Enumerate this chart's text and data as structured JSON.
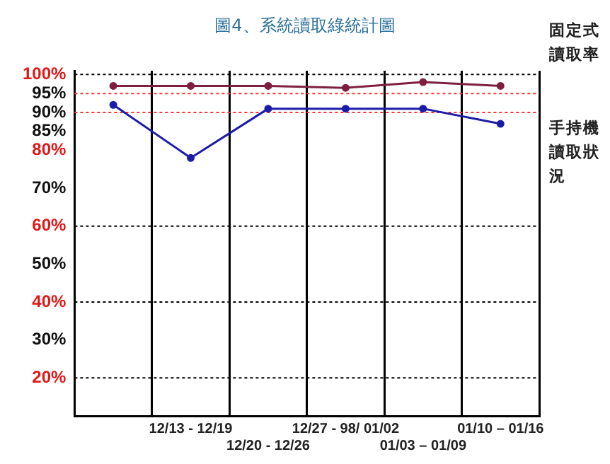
{
  "chart_data": {
    "type": "line",
    "title": "圖4、系統讀取綠統計圖",
    "categories": [
      null,
      "12/13 - 12/19",
      "12/20 - 12/26",
      "12/27 - 98/ 01/02",
      "01/03 – 01/09",
      "01/10 – 01/16"
    ],
    "series": [
      {
        "name": "固定式讀取率",
        "color": "#7f1f3f",
        "values": [
          97,
          97,
          97,
          96.5,
          98,
          97
        ]
      },
      {
        "name": "手持機讀取狀況",
        "color": "#1c1ca8",
        "values": [
          92,
          78,
          91,
          91,
          91,
          87
        ]
      }
    ],
    "ylim": [
      10,
      101
    ],
    "yticks": [
      {
        "value": 20,
        "label": "20%"
      },
      {
        "value": 30,
        "label": "30%"
      },
      {
        "value": 40,
        "label": "40%"
      },
      {
        "value": 50,
        "label": "50%"
      },
      {
        "value": 60,
        "label": "60%"
      },
      {
        "value": 70,
        "label": "70%"
      },
      {
        "value": 80,
        "label": "80%"
      },
      {
        "value": 85,
        "label": "85%"
      },
      {
        "value": 90,
        "label": "90%"
      },
      {
        "value": 95,
        "label": "95%"
      },
      {
        "value": 100,
        "label": "100%"
      }
    ],
    "ref_lines": [
      {
        "axis": "y",
        "value": 95,
        "color": "#ff3333",
        "line_style": "dotted"
      },
      {
        "axis": "y",
        "value": 90,
        "color": "#ff3333",
        "line_style": "dotted"
      },
      {
        "axis": "y",
        "value": 100,
        "color": "#000000",
        "line_style": "dotted"
      },
      {
        "axis": "y",
        "value": 60,
        "color": "#000000",
        "line_style": "dotted"
      },
      {
        "axis": "y",
        "value": 40,
        "color": "#000000",
        "line_style": "dotted"
      },
      {
        "axis": "y",
        "value": 20,
        "color": "#000000",
        "line_style": "dotted"
      }
    ],
    "grid": "x",
    "legend": "right",
    "marker": "circle",
    "line_style": "solid"
  }
}
